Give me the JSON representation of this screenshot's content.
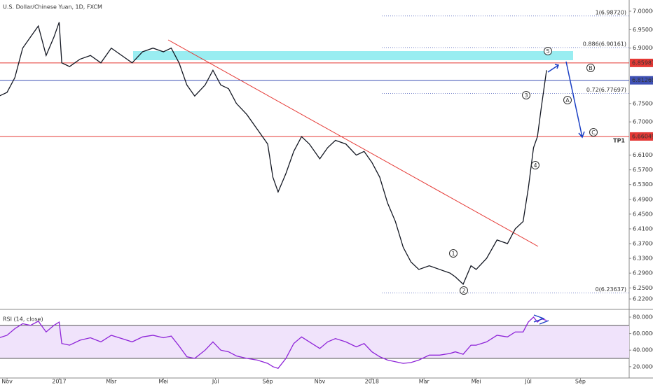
{
  "chart_data": [
    {
      "type": "line",
      "title": "U.S. Dollar/Chinese Yuan, 1D, FXCM",
      "color": "#131722",
      "x": [
        -0.3,
        0,
        0.3,
        0.6,
        0.9,
        1.2,
        1.5,
        1.8,
        2.0,
        2.1,
        2.4,
        2.8,
        3.2,
        3.6,
        4.0,
        4.4,
        4.8,
        5.2,
        5.6,
        6.0,
        6.3,
        6.6,
        6.9,
        7.2,
        7.6,
        7.9,
        8.2,
        8.5,
        8.8,
        9.2,
        9.6,
        10.0,
        10.2,
        10.4,
        10.7,
        11.0,
        11.3,
        11.6,
        12.0,
        12.3,
        12.6,
        13.0,
        13.4,
        13.7,
        14.0,
        14.3,
        14.6,
        14.9,
        15.2,
        15.5,
        15.8,
        16.2,
        16.6,
        17.0,
        17.2,
        17.5,
        17.8,
        18.0,
        18.4,
        18.8,
        19.2,
        19.5,
        19.8,
        20.0,
        20.2,
        20.35,
        20.5,
        20.7
      ],
      "values": [
        6.77,
        6.78,
        6.82,
        6.9,
        6.93,
        6.96,
        6.88,
        6.93,
        6.97,
        6.86,
        6.85,
        6.87,
        6.88,
        6.86,
        6.9,
        6.88,
        6.86,
        6.89,
        6.9,
        6.89,
        6.9,
        6.86,
        6.8,
        6.77,
        6.8,
        6.84,
        6.8,
        6.79,
        6.75,
        6.72,
        6.68,
        6.64,
        6.55,
        6.51,
        6.56,
        6.62,
        6.66,
        6.64,
        6.6,
        6.63,
        6.65,
        6.64,
        6.61,
        6.62,
        6.59,
        6.55,
        6.48,
        6.43,
        6.36,
        6.32,
        6.3,
        6.31,
        6.3,
        6.29,
        6.28,
        6.26,
        6.31,
        6.3,
        6.33,
        6.38,
        6.37,
        6.41,
        6.43,
        6.52,
        6.63,
        6.66,
        6.74,
        6.84
      ],
      "xlim": [
        -0.27,
        23.87
      ],
      "xticks": [
        {
          "value": 0,
          "label": "Nov"
        },
        {
          "value": 2,
          "label": "2017"
        },
        {
          "value": 4,
          "label": "Mar"
        },
        {
          "value": 6,
          "label": "Mei"
        },
        {
          "value": 8,
          "label": "Jul"
        },
        {
          "value": 10,
          "label": "Sep"
        },
        {
          "value": 12,
          "label": "Nov"
        },
        {
          "value": 14,
          "label": "2018"
        },
        {
          "value": 16,
          "label": "Mar"
        },
        {
          "value": 18,
          "label": "Mei"
        },
        {
          "value": 20,
          "label": "Jul"
        },
        {
          "value": 22,
          "label": "Sep"
        }
      ],
      "ylim": [
        6.1917,
        7.0304
      ],
      "yticks": [
        {
          "value": 7.0,
          "label": "7.00000"
        },
        {
          "value": 6.95,
          "label": "6.95000"
        },
        {
          "value": 6.9,
          "label": "6.90000"
        },
        {
          "value": 6.75,
          "label": "6.75000"
        },
        {
          "value": 6.7,
          "label": "6.70000"
        },
        {
          "value": 6.61,
          "label": "6.61000"
        },
        {
          "value": 6.57,
          "label": "6.57000"
        },
        {
          "value": 6.53,
          "label": "6.53000"
        },
        {
          "value": 6.49,
          "label": "6.49000"
        },
        {
          "value": 6.45,
          "label": "6.45000"
        },
        {
          "value": 6.41,
          "label": "6.41000"
        },
        {
          "value": 6.37,
          "label": "6.37000"
        },
        {
          "value": 6.33,
          "label": "6.33000"
        },
        {
          "value": 6.29,
          "label": "6.29000"
        },
        {
          "value": 6.25,
          "label": "6.25000"
        },
        {
          "value": 6.22,
          "label": "6.22000"
        }
      ],
      "levels": [
        {
          "value": 6.85987,
          "color": "#e53935"
        },
        {
          "value": 6.81269,
          "color": "#3f51b5"
        },
        {
          "value": 6.66049,
          "color": "#e53935"
        }
      ],
      "target_label": "TP1",
      "fib": [
        {
          "value": 6.9872,
          "label": "1(6.98720)"
        },
        {
          "value": 6.90161,
          "label": "0.886(6.90161)"
        },
        {
          "value": 6.77697,
          "label": "0.72(6.77697)"
        },
        {
          "value": 6.23637,
          "label": "0(6.23637)"
        }
      ],
      "waves": [
        "1",
        "2",
        "3",
        "4",
        "5",
        "A",
        "B",
        "C"
      ]
    },
    {
      "type": "line",
      "title": "RSI (14, close)",
      "color": "#8e24d8",
      "values": [
        55,
        58,
        66,
        72,
        70,
        75,
        62,
        70,
        74,
        48,
        46,
        52,
        55,
        50,
        58,
        54,
        50,
        56,
        58,
        55,
        57,
        45,
        32,
        30,
        40,
        50,
        40,
        38,
        33,
        30,
        28,
        24,
        20,
        18,
        30,
        48,
        56,
        50,
        42,
        50,
        54,
        50,
        44,
        48,
        38,
        32,
        28,
        26,
        24,
        25,
        28,
        34,
        34,
        36,
        38,
        35,
        46,
        46,
        50,
        58,
        56,
        62,
        62,
        74,
        80,
        74,
        78,
        76
      ],
      "ylim": [
        6.3,
        87.6
      ],
      "band": [
        30,
        70
      ],
      "yticks": [
        {
          "value": 80,
          "label": "80.0000"
        },
        {
          "value": 60,
          "label": "60.0000"
        },
        {
          "value": 40,
          "label": "40.0000"
        },
        {
          "value": 20,
          "label": "20.0000"
        }
      ]
    }
  ]
}
